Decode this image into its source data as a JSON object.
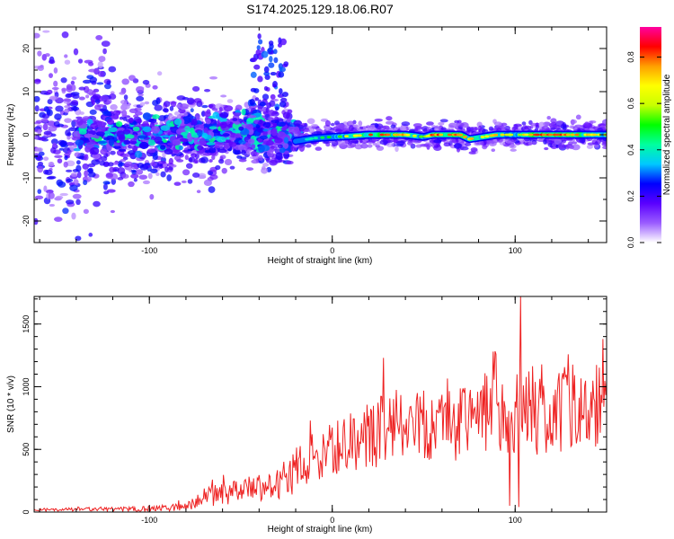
{
  "title": "S174.2025.129.18.06.R07",
  "chart_data": [
    {
      "type": "heatmap",
      "xlabel": "Height of straight line (km)",
      "ylabel": "Frequency (Hz)",
      "xlim": [
        -163,
        150
      ],
      "ylim": [
        -25,
        25
      ],
      "xticks": [
        -100,
        0,
        100
      ],
      "yticks": [
        -20,
        -10,
        0,
        10,
        20
      ],
      "colorbar": {
        "label": "Normalized spectral amplitude",
        "range": [
          0,
          0.93
        ],
        "ticks": [
          0.0,
          0.2,
          0.4,
          0.6,
          0.8
        ],
        "colors": [
          "#ffffff",
          "#9a5cff",
          "#5a00ff",
          "#0000ff",
          "#00c8ff",
          "#00ff9f",
          "#00ff00",
          "#c8ff00",
          "#ffff00",
          "#ff9f00",
          "#ff0000",
          "#ff00a0"
        ]
      },
      "ridge": {
        "description_x_range": [
          -20,
          150
        ],
        "centre_frequency": 0,
        "peak_amplitude": 0.85,
        "points": [
          {
            "x": -20,
            "y": -1.5,
            "a": 0.35
          },
          {
            "x": -10,
            "y": -0.8,
            "a": 0.45
          },
          {
            "x": 0,
            "y": -0.5,
            "a": 0.55
          },
          {
            "x": 10,
            "y": -0.3,
            "a": 0.7
          },
          {
            "x": 20,
            "y": 0.0,
            "a": 0.85
          },
          {
            "x": 30,
            "y": 0.0,
            "a": 0.85
          },
          {
            "x": 40,
            "y": 0.0,
            "a": 0.8
          },
          {
            "x": 50,
            "y": -0.5,
            "a": 0.6
          },
          {
            "x": 55,
            "y": 0.0,
            "a": 0.85
          },
          {
            "x": 70,
            "y": 0.0,
            "a": 0.85
          },
          {
            "x": 75,
            "y": -1.0,
            "a": 0.75
          },
          {
            "x": 90,
            "y": 0.0,
            "a": 0.75
          },
          {
            "x": 100,
            "y": 0.0,
            "a": 0.6
          },
          {
            "x": 110,
            "y": 0.0,
            "a": 0.85
          },
          {
            "x": 130,
            "y": 0.0,
            "a": 0.85
          },
          {
            "x": 145,
            "y": 0.0,
            "a": 0.7
          }
        ]
      },
      "scatter_region": {
        "x_range": [
          -160,
          -20
        ],
        "y_spread": 25,
        "amplitude_range": [
          0.05,
          0.4
        ]
      }
    },
    {
      "type": "line",
      "xlabel": "Height of straight line (km)",
      "ylabel": "SNR (10 * v/v)",
      "xlim": [
        -163,
        150
      ],
      "ylim": [
        0,
        1720
      ],
      "xticks": [
        -100,
        0,
        100
      ],
      "yticks": [
        0,
        500,
        1000,
        1500
      ],
      "color": "#ee2222",
      "envelope": [
        {
          "x": -163,
          "base": 15,
          "amp": 20
        },
        {
          "x": -100,
          "base": 25,
          "amp": 40
        },
        {
          "x": -80,
          "base": 40,
          "amp": 60
        },
        {
          "x": -70,
          "base": 110,
          "amp": 140
        },
        {
          "x": -50,
          "base": 160,
          "amp": 180
        },
        {
          "x": -35,
          "base": 190,
          "amp": 200
        },
        {
          "x": -25,
          "base": 250,
          "amp": 300
        },
        {
          "x": -15,
          "base": 380,
          "amp": 350
        },
        {
          "x": 0,
          "base": 480,
          "amp": 380
        },
        {
          "x": 15,
          "base": 560,
          "amp": 450
        },
        {
          "x": 30,
          "base": 640,
          "amp": 550
        },
        {
          "x": 60,
          "base": 700,
          "amp": 600
        },
        {
          "x": 90,
          "base": 740,
          "amp": 650
        },
        {
          "x": 100,
          "base": 760,
          "amp": 700
        },
        {
          "x": 150,
          "base": 780,
          "amp": 650
        }
      ],
      "notable_points": [
        {
          "x": 103,
          "y": 1720
        },
        {
          "x": -12,
          "y": 730
        },
        {
          "x": 28,
          "y": 1230
        },
        {
          "x": 88,
          "y": 1280
        },
        {
          "x": 148,
          "y": 1380
        },
        {
          "x": 102,
          "y": 40
        },
        {
          "x": 97,
          "y": 50
        }
      ]
    }
  ]
}
